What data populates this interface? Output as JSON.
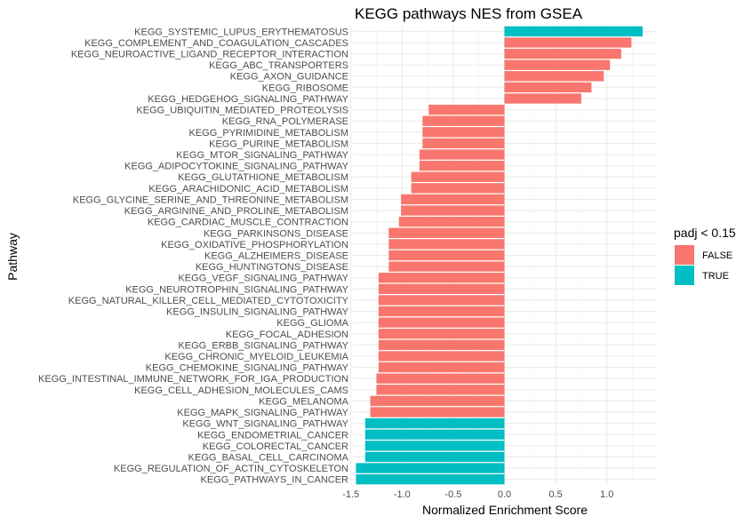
{
  "chart_data": {
    "type": "bar",
    "orientation": "horizontal",
    "title": "KEGG pathways NES from GSEA",
    "xlabel": "Normalized Enrichment Score",
    "ylabel": "Pathway",
    "xlim": [
      -1.48,
      1.48
    ],
    "xticks": [
      -1.5,
      -1.0,
      -0.5,
      0.0,
      0.5,
      1.0
    ],
    "xtick_labels": [
      "-1.5",
      "-1.0",
      "-0.5",
      "0.0",
      "0.5",
      "1.0"
    ],
    "grid": true,
    "legend": {
      "title": "padj < 0.15",
      "position": "right",
      "entries": [
        {
          "label": "FALSE",
          "color": "#F8766D"
        },
        {
          "label": "TRUE",
          "color": "#00BFC4"
        }
      ]
    },
    "bars": [
      {
        "pathway": "KEGG_SYSTEMIC_LUPUS_ERYTHEMATOSUS",
        "nes": 1.35,
        "padj_lt_015": "TRUE"
      },
      {
        "pathway": "KEGG_COMPLEMENT_AND_COAGULATION_CASCADES",
        "nes": 1.24,
        "padj_lt_015": "FALSE"
      },
      {
        "pathway": "KEGG_NEUROACTIVE_LIGAND_RECEPTOR_INTERACTION",
        "nes": 1.14,
        "padj_lt_015": "FALSE"
      },
      {
        "pathway": "KEGG_ABC_TRANSPORTERS",
        "nes": 1.03,
        "padj_lt_015": "FALSE"
      },
      {
        "pathway": "KEGG_AXON_GUIDANCE",
        "nes": 0.97,
        "padj_lt_015": "FALSE"
      },
      {
        "pathway": "KEGG_RIBOSOME",
        "nes": 0.85,
        "padj_lt_015": "FALSE"
      },
      {
        "pathway": "KEGG_HEDGEHOG_SIGNALING_PATHWAY",
        "nes": 0.75,
        "padj_lt_015": "FALSE"
      },
      {
        "pathway": "KEGG_UBIQUITIN_MEDIATED_PROTEOLYSIS",
        "nes": -0.74,
        "padj_lt_015": "FALSE"
      },
      {
        "pathway": "KEGG_RNA_POLYMERASE",
        "nes": -0.8,
        "padj_lt_015": "FALSE"
      },
      {
        "pathway": "KEGG_PYRIMIDINE_METABOLISM",
        "nes": -0.8,
        "padj_lt_015": "FALSE"
      },
      {
        "pathway": "KEGG_PURINE_METABOLISM",
        "nes": -0.8,
        "padj_lt_015": "FALSE"
      },
      {
        "pathway": "KEGG_MTOR_SIGNALING_PATHWAY",
        "nes": -0.83,
        "padj_lt_015": "FALSE"
      },
      {
        "pathway": "KEGG_ADIPOCYTOKINE_SIGNALING_PATHWAY",
        "nes": -0.83,
        "padj_lt_015": "FALSE"
      },
      {
        "pathway": "KEGG_GLUTATHIONE_METABOLISM",
        "nes": -0.91,
        "padj_lt_015": "FALSE"
      },
      {
        "pathway": "KEGG_ARACHIDONIC_ACID_METABOLISM",
        "nes": -0.91,
        "padj_lt_015": "FALSE"
      },
      {
        "pathway": "KEGG_GLYCINE_SERINE_AND_THREONINE_METABOLISM",
        "nes": -1.01,
        "padj_lt_015": "FALSE"
      },
      {
        "pathway": "KEGG_ARGININE_AND_PROLINE_METABOLISM",
        "nes": -1.01,
        "padj_lt_015": "FALSE"
      },
      {
        "pathway": "KEGG_CARDIAC_MUSCLE_CONTRACTION",
        "nes": -1.03,
        "padj_lt_015": "FALSE"
      },
      {
        "pathway": "KEGG_PARKINSONS_DISEASE",
        "nes": -1.13,
        "padj_lt_015": "FALSE"
      },
      {
        "pathway": "KEGG_OXIDATIVE_PHOSPHORYLATION",
        "nes": -1.13,
        "padj_lt_015": "FALSE"
      },
      {
        "pathway": "KEGG_ALZHEIMERS_DISEASE",
        "nes": -1.13,
        "padj_lt_015": "FALSE"
      },
      {
        "pathway": "KEGG_HUNTINGTONS_DISEASE",
        "nes": -1.13,
        "padj_lt_015": "FALSE"
      },
      {
        "pathway": "KEGG_VEGF_SIGNALING_PATHWAY",
        "nes": -1.23,
        "padj_lt_015": "FALSE"
      },
      {
        "pathway": "KEGG_NEUROTROPHIN_SIGNALING_PATHWAY",
        "nes": -1.23,
        "padj_lt_015": "FALSE"
      },
      {
        "pathway": "KEGG_NATURAL_KILLER_CELL_MEDIATED_CYTOTOXICITY",
        "nes": -1.23,
        "padj_lt_015": "FALSE"
      },
      {
        "pathway": "KEGG_INSULIN_SIGNALING_PATHWAY",
        "nes": -1.23,
        "padj_lt_015": "FALSE"
      },
      {
        "pathway": "KEGG_GLIOMA",
        "nes": -1.23,
        "padj_lt_015": "FALSE"
      },
      {
        "pathway": "KEGG_FOCAL_ADHESION",
        "nes": -1.23,
        "padj_lt_015": "FALSE"
      },
      {
        "pathway": "KEGG_ERBB_SIGNALING_PATHWAY",
        "nes": -1.23,
        "padj_lt_015": "FALSE"
      },
      {
        "pathway": "KEGG_CHRONIC_MYELOID_LEUKEMIA",
        "nes": -1.23,
        "padj_lt_015": "FALSE"
      },
      {
        "pathway": "KEGG_CHEMOKINE_SIGNALING_PATHWAY",
        "nes": -1.23,
        "padj_lt_015": "FALSE"
      },
      {
        "pathway": "KEGG_INTESTINAL_IMMUNE_NETWORK_FOR_IGA_PRODUCTION",
        "nes": -1.25,
        "padj_lt_015": "FALSE"
      },
      {
        "pathway": "KEGG_CELL_ADHESION_MOLECULES_CAMS",
        "nes": -1.25,
        "padj_lt_015": "FALSE"
      },
      {
        "pathway": "KEGG_MELANOMA",
        "nes": -1.31,
        "padj_lt_015": "FALSE"
      },
      {
        "pathway": "KEGG_MAPK_SIGNALING_PATHWAY",
        "nes": -1.31,
        "padj_lt_015": "FALSE"
      },
      {
        "pathway": "KEGG_WNT_SIGNALING_PATHWAY",
        "nes": -1.36,
        "padj_lt_015": "TRUE"
      },
      {
        "pathway": "KEGG_ENDOMETRIAL_CANCER",
        "nes": -1.36,
        "padj_lt_015": "TRUE"
      },
      {
        "pathway": "KEGG_COLORECTAL_CANCER",
        "nes": -1.36,
        "padj_lt_015": "TRUE"
      },
      {
        "pathway": "KEGG_BASAL_CELL_CARCINOMA",
        "nes": -1.36,
        "padj_lt_015": "TRUE"
      },
      {
        "pathway": "KEGG_REGULATION_OF_ACTIN_CYTOSKELETON",
        "nes": -1.45,
        "padj_lt_015": "TRUE"
      },
      {
        "pathway": "KEGG_PATHWAYS_IN_CANCER",
        "nes": -1.45,
        "padj_lt_015": "TRUE"
      }
    ]
  }
}
